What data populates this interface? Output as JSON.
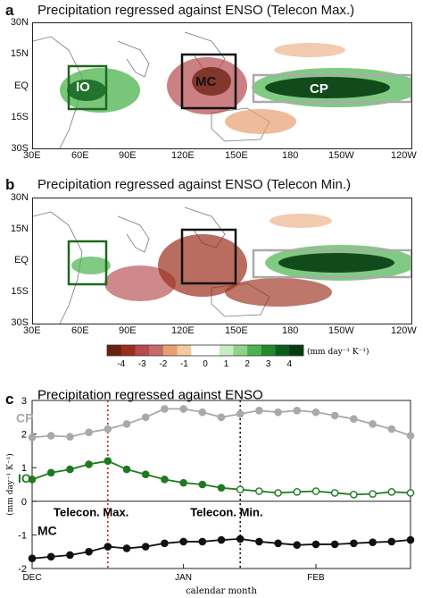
{
  "panels": [
    {
      "letter": "a",
      "title": "Precipitation regressed against ENSO (Telecon Max.)",
      "lat_ticks": [
        "30N",
        "15N",
        "EQ",
        "15S",
        "30S"
      ],
      "lon_ticks": [
        "30E",
        "60E",
        "90E",
        "120E",
        "150E",
        "180",
        "150W",
        "120W"
      ],
      "box_labels": {
        "io": "IO",
        "mc": "MC",
        "cp": "CP"
      }
    },
    {
      "letter": "b",
      "title": "Precipitation regressed against ENSO (Telecon Min.)",
      "lat_ticks": [
        "30N",
        "15N",
        "EQ",
        "15S",
        "30S"
      ],
      "lon_ticks": [
        "30E",
        "60E",
        "90E",
        "120E",
        "150E",
        "180",
        "150W",
        "120W"
      ]
    }
  ],
  "colorbar": {
    "ticks": [
      "-4",
      "-3",
      "-2",
      "-1",
      "0",
      "1",
      "2",
      "3",
      "4"
    ],
    "unit": "(mm day⁻¹ K⁻¹)",
    "colors": [
      "#6b1f0f",
      "#9a2f1c",
      "#b54a4f",
      "#c66a6a",
      "#e8a070",
      "#f3c9a0",
      "#ffffff",
      "#ffffff",
      "#c9ecc4",
      "#8fd48a",
      "#4cb34e",
      "#1f8a2d",
      "#0b5e1a",
      "#063d10"
    ]
  },
  "chart_data": {
    "type": "line",
    "panel_letter": "c",
    "title": "Precipitation regressed against ENSO",
    "xlabel": "calendar month",
    "ylabel": "(mm day⁻¹ K⁻¹)",
    "ylim": [
      -2,
      3
    ],
    "xlim": [
      0,
      20
    ],
    "yticks": [
      -2,
      -1,
      0,
      1,
      2,
      3
    ],
    "xticks": [
      {
        "x": 0,
        "label": "DEC"
      },
      {
        "x": 8,
        "label": "JAN"
      },
      {
        "x": 15,
        "label": "FEB"
      }
    ],
    "vlines": [
      {
        "x": 4,
        "color": "#cc2222",
        "label": "Telecon. Max."
      },
      {
        "x": 11,
        "color": "#111111",
        "label": "Telecon. Min."
      }
    ],
    "series": [
      {
        "name": "CP",
        "color": "#a9a9a9",
        "x": [
          0,
          1,
          2,
          3,
          4,
          5,
          6,
          7,
          8,
          9,
          10,
          11,
          12,
          13,
          14,
          15,
          16,
          17,
          18,
          19,
          20
        ],
        "values": [
          1.9,
          1.95,
          1.92,
          2.05,
          2.15,
          2.3,
          2.5,
          2.75,
          2.75,
          2.65,
          2.5,
          2.6,
          2.7,
          2.65,
          2.7,
          2.65,
          2.55,
          2.45,
          2.3,
          2.15,
          1.95
        ],
        "filled": [
          true,
          true,
          true,
          true,
          true,
          true,
          true,
          true,
          true,
          true,
          true,
          true,
          true,
          true,
          true,
          true,
          true,
          true,
          true,
          true,
          true
        ]
      },
      {
        "name": "IO",
        "color": "#1e7a1e",
        "x": [
          0,
          1,
          2,
          3,
          4,
          5,
          6,
          7,
          8,
          9,
          10,
          11,
          12,
          13,
          14,
          15,
          16,
          17,
          18,
          19,
          20
        ],
        "values": [
          0.65,
          0.85,
          0.95,
          1.1,
          1.2,
          0.95,
          0.8,
          0.65,
          0.55,
          0.5,
          0.4,
          0.35,
          0.3,
          0.25,
          0.28,
          0.3,
          0.25,
          0.2,
          0.22,
          0.28,
          0.25
        ],
        "filled": [
          true,
          true,
          true,
          true,
          true,
          true,
          true,
          true,
          true,
          true,
          true,
          false,
          false,
          false,
          false,
          false,
          false,
          false,
          false,
          false,
          false
        ]
      },
      {
        "name": "MC",
        "color": "#111111",
        "x": [
          0,
          1,
          2,
          3,
          4,
          5,
          6,
          7,
          8,
          9,
          10,
          11,
          12,
          13,
          14,
          15,
          16,
          17,
          18,
          19,
          20
        ],
        "values": [
          -1.7,
          -1.65,
          -1.6,
          -1.5,
          -1.35,
          -1.4,
          -1.35,
          -1.25,
          -1.2,
          -1.2,
          -1.15,
          -1.12,
          -1.2,
          -1.25,
          -1.3,
          -1.28,
          -1.28,
          -1.25,
          -1.22,
          -1.2,
          -1.15
        ],
        "filled": [
          true,
          true,
          true,
          true,
          true,
          true,
          true,
          true,
          true,
          true,
          true,
          true,
          true,
          true,
          true,
          true,
          true,
          true,
          true,
          true,
          true
        ]
      }
    ]
  }
}
